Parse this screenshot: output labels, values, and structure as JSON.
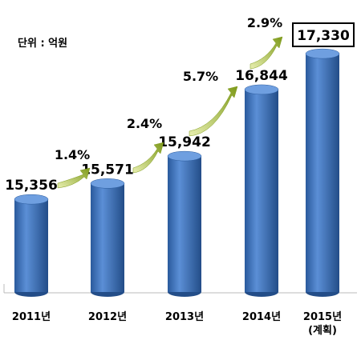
{
  "chart_data": {
    "type": "bar",
    "unit_label": "단위 : 억원",
    "categories": [
      "2011년",
      "2012년",
      "2013년",
      "2014년",
      "2015년\n(계획)"
    ],
    "values": [
      15356,
      15571,
      15942,
      16844,
      17330
    ],
    "value_labels": [
      "15,356",
      "15,571",
      "15,942",
      "16,844",
      "17,330"
    ],
    "annotations": [
      "1.4%",
      "2.4%",
      "5.7%",
      "2.9%"
    ],
    "color": "#3a6fb8",
    "ylim": [
      14100,
      17700
    ]
  }
}
